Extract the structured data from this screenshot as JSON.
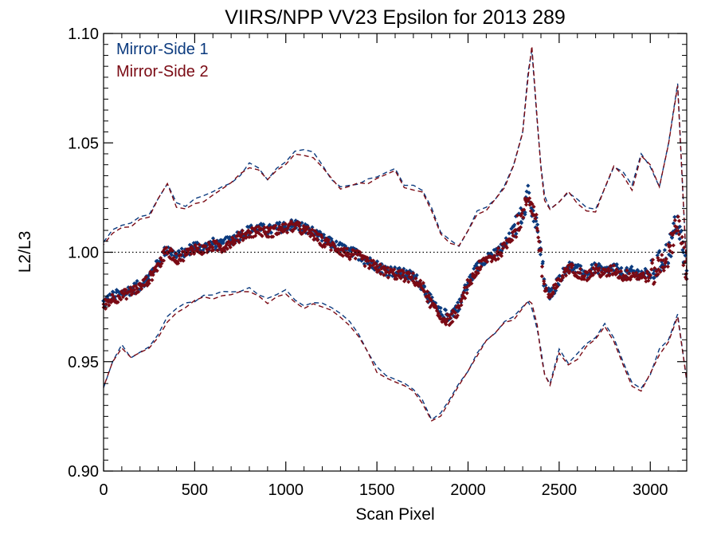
{
  "chart_data": {
    "type": "scatter",
    "title": "VIIRS/NPP VV23 Epsilon for 2013 289",
    "xlabel": "Scan Pixel",
    "ylabel": "L2/L3",
    "xlim": [
      0,
      3200
    ],
    "ylim": [
      0.9,
      1.1
    ],
    "xticks": [
      0,
      500,
      1000,
      1500,
      2000,
      2500,
      3000
    ],
    "xtick_labels": [
      "0",
      "500",
      "1000",
      "1500",
      "2000",
      "2500",
      "3000"
    ],
    "yticks": [
      0.9,
      0.95,
      1.0,
      1.05,
      1.1
    ],
    "ytick_labels": [
      "0.90",
      "0.95",
      "1.00",
      "1.05",
      "1.10"
    ],
    "reference_line": 1.0,
    "legend_position": "top-left",
    "colors": {
      "ms1": "#0b3a7e",
      "ms2": "#7a0a14"
    },
    "x": [
      0,
      50,
      100,
      150,
      200,
      250,
      300,
      350,
      400,
      450,
      500,
      550,
      600,
      650,
      700,
      750,
      800,
      850,
      900,
      950,
      1000,
      1050,
      1100,
      1150,
      1200,
      1250,
      1300,
      1350,
      1400,
      1450,
      1500,
      1550,
      1600,
      1650,
      1700,
      1750,
      1800,
      1850,
      1900,
      1950,
      2000,
      2050,
      2100,
      2150,
      2200,
      2250,
      2300,
      2330,
      2350,
      2380,
      2400,
      2420,
      2450,
      2500,
      2550,
      2600,
      2650,
      2700,
      2750,
      2800,
      2850,
      2900,
      2950,
      3000,
      3050,
      3100,
      3150,
      3200
    ],
    "series": [
      {
        "name": "Mirror-Side 1",
        "color": "#0b3a7e",
        "mean": [
          0.977,
          0.98,
          0.981,
          0.983,
          0.985,
          0.989,
          0.995,
          1.002,
          0.998,
          1.0,
          1.003,
          1.002,
          1.004,
          1.003,
          1.006,
          1.008,
          1.01,
          1.011,
          1.01,
          1.011,
          1.012,
          1.013,
          1.011,
          1.009,
          1.006,
          1.004,
          1.002,
          1.0,
          0.999,
          0.996,
          0.994,
          0.992,
          0.991,
          0.99,
          0.989,
          0.985,
          0.977,
          0.972,
          0.971,
          0.976,
          0.986,
          0.993,
          0.998,
          0.999,
          1.003,
          1.01,
          1.018,
          1.027,
          1.02,
          1.012,
          0.998,
          0.985,
          0.98,
          0.988,
          0.994,
          0.992,
          0.99,
          0.993,
          0.991,
          0.993,
          0.99,
          0.991,
          0.99,
          0.99,
          0.995,
          1.0,
          1.015,
          0.99
        ],
        "upper": [
          1.004,
          1.01,
          1.012,
          1.013,
          1.016,
          1.018,
          1.025,
          1.032,
          1.022,
          1.02,
          1.024,
          1.025,
          1.028,
          1.03,
          1.032,
          1.036,
          1.04,
          1.038,
          1.034,
          1.038,
          1.042,
          1.046,
          1.046,
          1.045,
          1.04,
          1.034,
          1.03,
          1.031,
          1.032,
          1.033,
          1.035,
          1.037,
          1.039,
          1.03,
          1.03,
          1.029,
          1.02,
          1.01,
          1.005,
          1.003,
          1.01,
          1.018,
          1.02,
          1.025,
          1.03,
          1.04,
          1.055,
          1.082,
          1.093,
          1.06,
          1.04,
          1.025,
          1.02,
          1.024,
          1.028,
          1.024,
          1.02,
          1.02,
          1.03,
          1.04,
          1.036,
          1.03,
          1.045,
          1.04,
          1.03,
          1.05,
          1.078,
          0.99
        ],
        "lower": [
          0.939,
          0.95,
          0.958,
          0.952,
          0.955,
          0.957,
          0.962,
          0.97,
          0.974,
          0.976,
          0.978,
          0.98,
          0.98,
          0.982,
          0.981,
          0.982,
          0.983,
          0.981,
          0.978,
          0.98,
          0.982,
          0.979,
          0.976,
          0.977,
          0.977,
          0.975,
          0.972,
          0.968,
          0.963,
          0.955,
          0.947,
          0.944,
          0.941,
          0.94,
          0.938,
          0.932,
          0.923,
          0.927,
          0.932,
          0.94,
          0.946,
          0.953,
          0.96,
          0.964,
          0.968,
          0.97,
          0.975,
          0.978,
          0.975,
          0.965,
          0.955,
          0.945,
          0.94,
          0.955,
          0.95,
          0.953,
          0.958,
          0.962,
          0.967,
          0.96,
          0.95,
          0.94,
          0.938,
          0.945,
          0.955,
          0.96,
          0.972,
          0.942
        ]
      },
      {
        "name": "Mirror-Side 2",
        "color": "#7a0a14",
        "mean": [
          0.976,
          0.979,
          0.98,
          0.982,
          0.984,
          0.988,
          0.994,
          1.001,
          0.997,
          0.999,
          1.002,
          1.001,
          1.003,
          1.002,
          1.005,
          1.007,
          1.009,
          1.01,
          1.009,
          1.01,
          1.011,
          1.012,
          1.01,
          1.008,
          1.005,
          1.003,
          1.001,
          0.999,
          0.998,
          0.995,
          0.993,
          0.991,
          0.99,
          0.989,
          0.988,
          0.984,
          0.976,
          0.97,
          0.969,
          0.974,
          0.985,
          0.992,
          0.997,
          0.998,
          1.002,
          1.009,
          1.017,
          1.026,
          1.021,
          1.013,
          0.997,
          0.984,
          0.979,
          0.987,
          0.993,
          0.991,
          0.989,
          0.992,
          0.99,
          0.992,
          0.989,
          0.99,
          0.989,
          0.989,
          0.994,
          0.999,
          1.016,
          0.988
        ],
        "upper": [
          1.003,
          1.009,
          1.011,
          1.012,
          1.015,
          1.017,
          1.024,
          1.031,
          1.021,
          1.019,
          1.023,
          1.024,
          1.027,
          1.029,
          1.031,
          1.035,
          1.039,
          1.037,
          1.033,
          1.037,
          1.041,
          1.045,
          1.045,
          1.044,
          1.039,
          1.033,
          1.029,
          1.03,
          1.031,
          1.032,
          1.034,
          1.036,
          1.038,
          1.029,
          1.029,
          1.028,
          1.019,
          1.009,
          1.004,
          1.002,
          1.009,
          1.017,
          1.019,
          1.024,
          1.029,
          1.039,
          1.054,
          1.081,
          1.094,
          1.061,
          1.039,
          1.024,
          1.019,
          1.023,
          1.027,
          1.023,
          1.019,
          1.019,
          1.029,
          1.039,
          1.035,
          1.029,
          1.044,
          1.039,
          1.029,
          1.049,
          1.076,
          0.992
        ],
        "lower": [
          0.938,
          0.949,
          0.957,
          0.951,
          0.954,
          0.956,
          0.961,
          0.969,
          0.973,
          0.975,
          0.977,
          0.979,
          0.979,
          0.981,
          0.98,
          0.981,
          0.982,
          0.98,
          0.977,
          0.979,
          0.981,
          0.978,
          0.975,
          0.976,
          0.976,
          0.974,
          0.971,
          0.967,
          0.962,
          0.954,
          0.946,
          0.943,
          0.94,
          0.939,
          0.937,
          0.931,
          0.922,
          0.926,
          0.931,
          0.939,
          0.945,
          0.952,
          0.959,
          0.963,
          0.967,
          0.969,
          0.974,
          0.977,
          0.976,
          0.966,
          0.954,
          0.944,
          0.939,
          0.954,
          0.949,
          0.952,
          0.957,
          0.961,
          0.966,
          0.959,
          0.949,
          0.939,
          0.937,
          0.944,
          0.954,
          0.959,
          0.971,
          0.941
        ]
      }
    ]
  }
}
